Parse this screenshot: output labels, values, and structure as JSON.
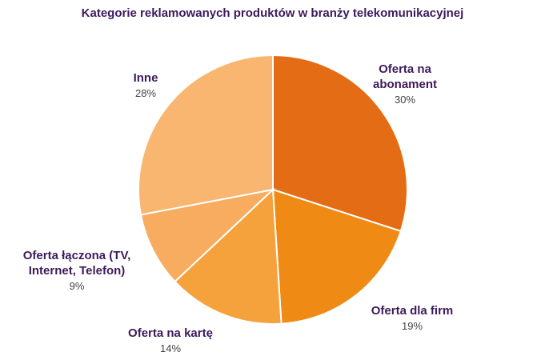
{
  "chart_data": {
    "type": "pie",
    "title": "Kategorie reklamowanych produktów w branży telekomunikacyjnej",
    "slices": [
      {
        "label": "Oferta na abonament",
        "label_lines": [
          "Oferta na",
          "abonament"
        ],
        "value": 30,
        "value_label": "30%",
        "color": "#e46c14"
      },
      {
        "label": "Oferta dla firm",
        "label_lines": [
          "Oferta dla firm"
        ],
        "value": 19,
        "value_label": "19%",
        "color": "#ef8a14"
      },
      {
        "label": "Oferta na kartę",
        "label_lines": [
          "Oferta na kartę"
        ],
        "value": 14,
        "value_label": "14%",
        "color": "#f5a23c"
      },
      {
        "label": "Oferta łączona (TV, Internet, Telefon)",
        "label_lines": [
          "Oferta łączona (TV,",
          "Internet, Telefon)"
        ],
        "value": 9,
        "value_label": "9%",
        "color": "#f7ac60"
      },
      {
        "label": "Inne",
        "label_lines": [
          "Inne"
        ],
        "value": 28,
        "value_label": "28%",
        "color": "#f8b671"
      }
    ],
    "legend": "none",
    "start_angle": "12 o'clock",
    "direction": "clockwise"
  }
}
